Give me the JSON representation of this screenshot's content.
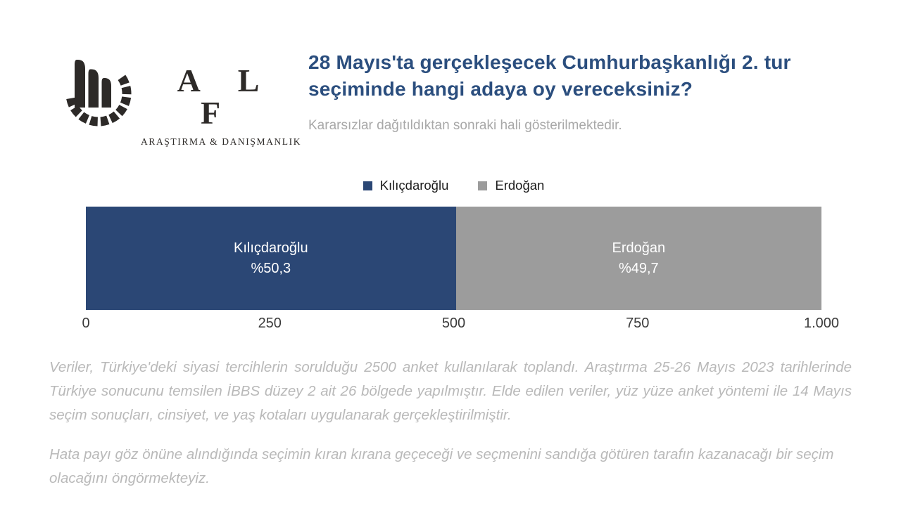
{
  "logo": {
    "name": "A L F",
    "display_name": "ALF",
    "tagline": "ARAŞTIRMA & DANIŞMANLIK"
  },
  "header": {
    "title": "28 Mayıs'ta gerçekleşecek Cumhurbaşkanlığı 2. tur seçiminde hangi adaya oy vereceksiniz?",
    "subtitle": "Kararsızlar dağıtıldıktan sonraki hali gösterilmektedir."
  },
  "chart_data": {
    "type": "bar",
    "variant": "horizontal-stacked-100",
    "title": "28 Mayıs'ta gerçekleşecek Cumhurbaşkanlığı 2. tur seçiminde hangi adaya oy vereceksiniz?",
    "series": [
      {
        "name": "Kılıçdaroğlu",
        "label": "Kılıçdaroğlu",
        "value": 50.3,
        "value_label": "%50,3",
        "axis_value": 503,
        "color": "#2b4775"
      },
      {
        "name": "Erdoğan",
        "label": "Erdoğan",
        "value": 49.7,
        "value_label": "%49,7",
        "axis_value": 497,
        "color": "#9c9c9c"
      }
    ],
    "legend": [
      "Kılıçdaroğlu",
      "Erdoğan"
    ],
    "legend_position": "top-center",
    "x_ticks": [
      "0",
      "250",
      "500",
      "750",
      "1.000"
    ],
    "xlim": [
      0,
      1000
    ],
    "grid": false,
    "bar_label_color": "#ffffff"
  },
  "footer": {
    "paragraph1": "Veriler, Türkiye'deki siyasi tercihlerin sorulduğu 2500 anket kullanılarak toplandı. Araştırma 25-26 Mayıs 2023 tarihlerinde Türkiye sonucunu temsilen İBBS düzey 2 ait 26 bölgede yapılmıştır. Elde edilen veriler, yüz yüze anket yöntemi ile 14 Mayıs seçim sonuçları, cinsiyet, ve yaş kotaları uygulanarak gerçekleştirilmiştir.",
    "paragraph2": "Hata payı göz önüne alındığında seçimin kıran kırana geçeceği ve seçmenini sandığa götüren tarafın kazanacağı bir seçim olacağını öngörmekteyiz."
  }
}
